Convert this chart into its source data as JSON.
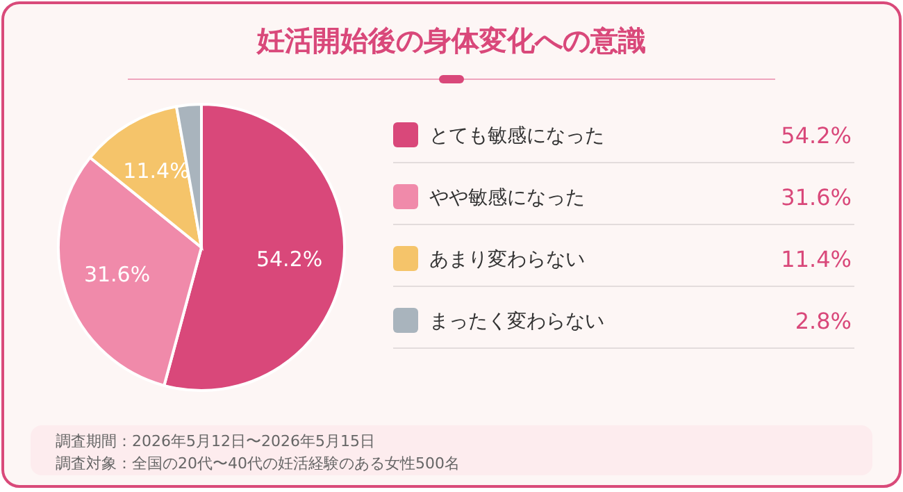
{
  "chart_data": {
    "type": "pie",
    "title": "妊活開始後の身体変化への意識",
    "categories": [
      "とても敏感になった",
      "やや敏感になった",
      "あまり変わらない",
      "まったく変わらない"
    ],
    "values": [
      54.2,
      31.6,
      11.4,
      2.8
    ],
    "value_labels": [
      "54.2%",
      "31.6%",
      "11.4%",
      "2.8%"
    ],
    "colors": [
      "#d9487a",
      "#f08aaa",
      "#f5c46a",
      "#a9b4bd"
    ],
    "legend": "right",
    "annotations": [
      "調査期間：2026年5月12日〜2026年5月15日",
      "調査対象：全国の20代〜40代の妊活経験のある女性500名"
    ]
  }
}
